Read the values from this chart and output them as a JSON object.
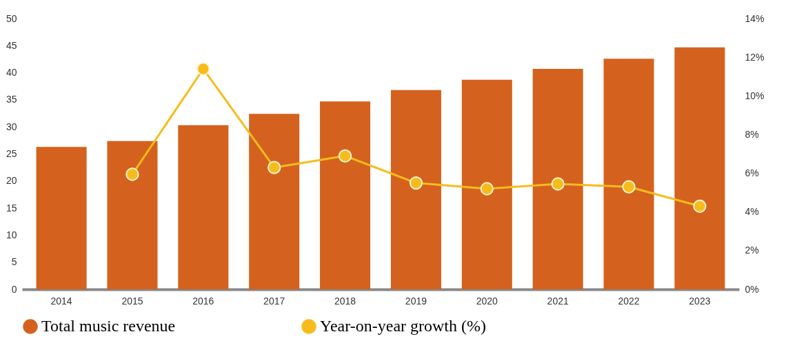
{
  "chart_data": {
    "type": "bar",
    "categories": [
      "2014",
      "2015",
      "2016",
      "2017",
      "2018",
      "2019",
      "2020",
      "2021",
      "2022",
      "2023"
    ],
    "series": [
      {
        "name": "Total music revenue",
        "color": "#d4621e",
        "values": [
          26.3,
          27.4,
          30.3,
          32.4,
          34.7,
          36.8,
          38.7,
          40.7,
          42.6,
          44.7
        ]
      },
      {
        "name": "Year-on-year growth (%)",
        "type": "line",
        "axis": "y2",
        "color": "#f7bc1c",
        "values": [
          null,
          5.95,
          11.4,
          6.3,
          6.9,
          5.5,
          5.2,
          5.45,
          5.3,
          4.3
        ]
      }
    ],
    "ylim": [
      0,
      50
    ],
    "yticks": [
      0,
      5,
      10,
      15,
      20,
      25,
      30,
      35,
      40,
      45,
      50
    ],
    "y2lim": [
      0,
      14
    ],
    "y2ticks": [
      {
        "value": 0,
        "label": "0%"
      },
      {
        "value": 2,
        "label": "2%"
      },
      {
        "value": 4,
        "label": "4%"
      },
      {
        "value": 6,
        "label": "6%"
      },
      {
        "value": 8,
        "label": "8%"
      },
      {
        "value": 10,
        "label": "10%"
      },
      {
        "value": 12,
        "label": "12%"
      },
      {
        "value": 14,
        "label": "14%"
      }
    ],
    "marker": "circle",
    "legend": "bottom",
    "grid": false
  }
}
